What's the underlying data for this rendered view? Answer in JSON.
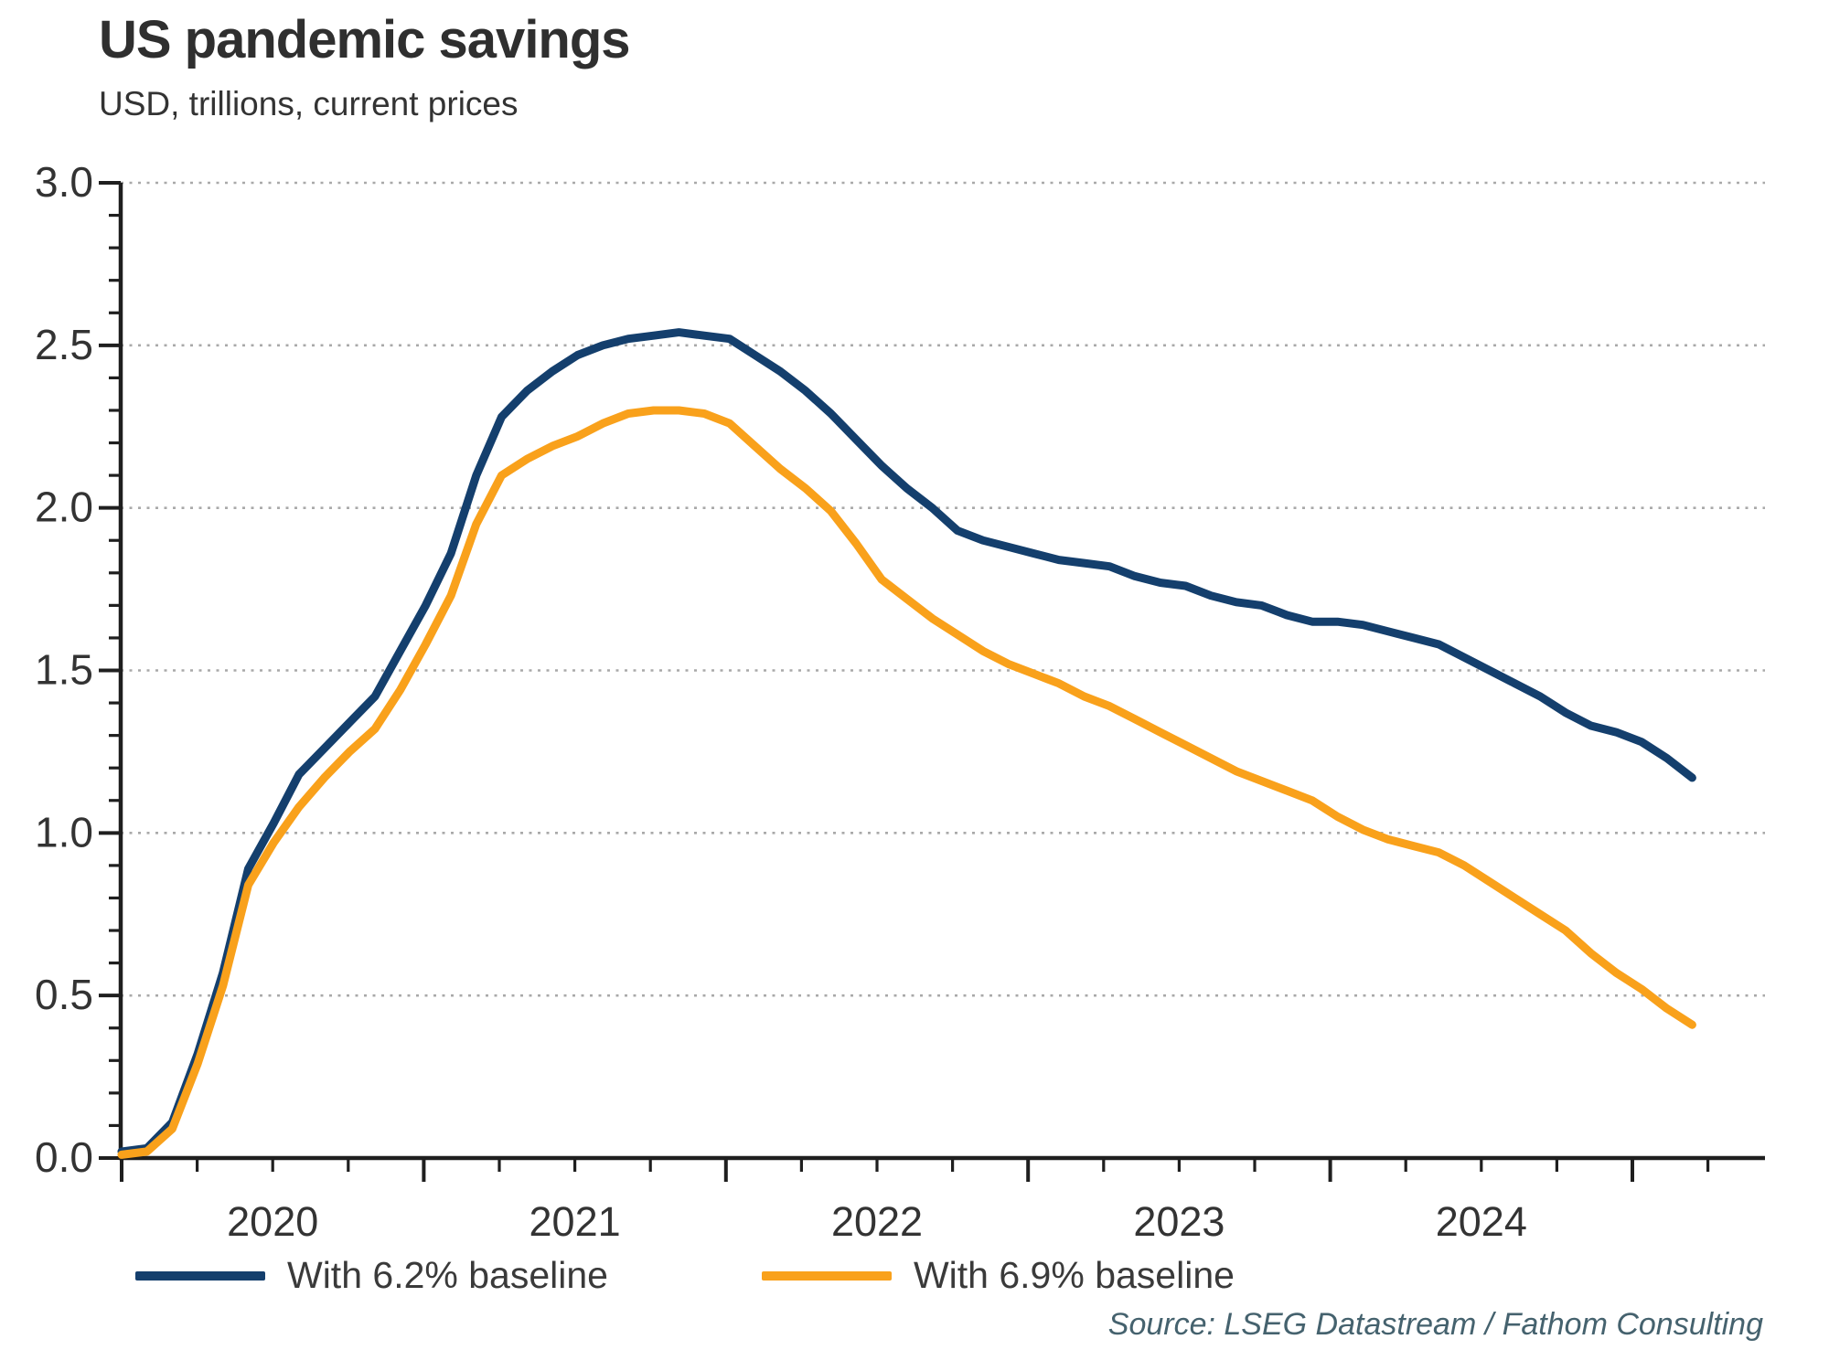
{
  "chart_data": {
    "type": "line",
    "title": "US pandemic savings",
    "subtitle": "USD, trillions, current prices",
    "source": "Source: LSEG Datastream / Fathom Consulting",
    "ylim": [
      0,
      3
    ],
    "y_tick_step_major": 0.5,
    "y_tick_step_minor": 0.1,
    "y_tick_labels": [
      "0.0",
      "0.5",
      "1.0",
      "1.5",
      "2.0",
      "2.5",
      "3.0"
    ],
    "x_year_labels": [
      "2020",
      "2021",
      "2022",
      "2023",
      "2024"
    ],
    "grid": "horizontal-dotted",
    "legend_position": "bottom",
    "axis_color": "#1f1f1f",
    "grid_color": "#a9a9a9",
    "x": [
      "2020-01",
      "2020-02",
      "2020-03",
      "2020-04",
      "2020-05",
      "2020-06",
      "2020-07",
      "2020-08",
      "2020-09",
      "2020-10",
      "2020-11",
      "2020-12",
      "2021-01",
      "2021-02",
      "2021-03",
      "2021-04",
      "2021-05",
      "2021-06",
      "2021-07",
      "2021-08",
      "2021-09",
      "2021-10",
      "2021-11",
      "2021-12",
      "2022-01",
      "2022-02",
      "2022-03",
      "2022-04",
      "2022-05",
      "2022-06",
      "2022-07",
      "2022-08",
      "2022-09",
      "2022-10",
      "2022-11",
      "2022-12",
      "2023-01",
      "2023-02",
      "2023-03",
      "2023-04",
      "2023-05",
      "2023-06",
      "2023-07",
      "2023-08",
      "2023-09",
      "2023-10",
      "2023-11",
      "2023-12",
      "2024-01",
      "2024-02",
      "2024-03",
      "2024-04",
      "2024-05",
      "2024-06",
      "2024-07",
      "2024-08",
      "2024-09",
      "2024-10",
      "2024-11",
      "2024-12",
      "2025-01",
      "2025-02",
      "2025-03"
    ],
    "series": [
      {
        "name": "With 6.2% baseline",
        "color": "#143f6d",
        "values": [
          0.02,
          0.03,
          0.11,
          0.32,
          0.57,
          0.89,
          1.03,
          1.18,
          1.26,
          1.34,
          1.42,
          1.56,
          1.7,
          1.86,
          2.1,
          2.28,
          2.36,
          2.42,
          2.47,
          2.5,
          2.52,
          2.53,
          2.54,
          2.53,
          2.52,
          2.47,
          2.42,
          2.36,
          2.29,
          2.21,
          2.13,
          2.06,
          2.0,
          1.93,
          1.9,
          1.88,
          1.86,
          1.84,
          1.83,
          1.82,
          1.79,
          1.77,
          1.76,
          1.73,
          1.71,
          1.7,
          1.67,
          1.65,
          1.65,
          1.64,
          1.62,
          1.6,
          1.58,
          1.54,
          1.5,
          1.46,
          1.42,
          1.37,
          1.33,
          1.31,
          1.28,
          1.23,
          1.17
        ]
      },
      {
        "name": "With 6.9% baseline",
        "color": "#f9a11b",
        "values": [
          0.01,
          0.02,
          0.09,
          0.29,
          0.53,
          0.84,
          0.97,
          1.08,
          1.17,
          1.25,
          1.32,
          1.44,
          1.58,
          1.73,
          1.95,
          2.1,
          2.15,
          2.19,
          2.22,
          2.26,
          2.29,
          2.3,
          2.3,
          2.29,
          2.26,
          2.19,
          2.12,
          2.06,
          1.99,
          1.89,
          1.78,
          1.72,
          1.66,
          1.61,
          1.56,
          1.52,
          1.49,
          1.46,
          1.42,
          1.39,
          1.35,
          1.31,
          1.27,
          1.23,
          1.19,
          1.16,
          1.13,
          1.1,
          1.05,
          1.01,
          0.98,
          0.96,
          0.94,
          0.9,
          0.85,
          0.8,
          0.75,
          0.7,
          0.63,
          0.57,
          0.52,
          0.46,
          0.41
        ]
      }
    ]
  }
}
